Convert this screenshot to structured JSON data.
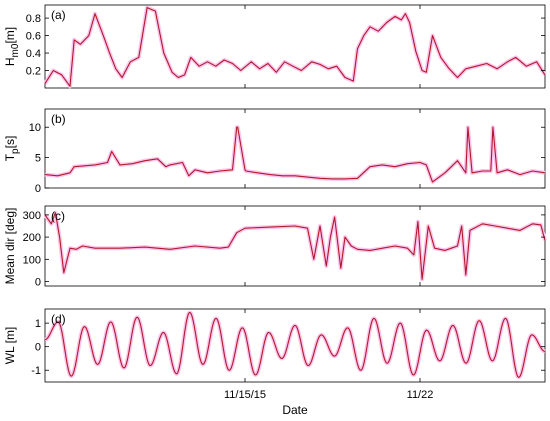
{
  "chart_data": {
    "type": "line",
    "shared_x": {
      "label": "Date",
      "start": "2015-11-07 00:00",
      "end": "2015-11-27 00:00",
      "ticks": [
        "2015-11-15",
        "2015-11-22"
      ],
      "tick_labels": [
        "11/15/15",
        "11/22"
      ]
    },
    "colors": {
      "line": "#b2182b",
      "envelope": "#fbc4ec"
    },
    "panels": [
      {
        "letter": "(a)",
        "ylabel": "H",
        "ylabel_sub": "m0",
        "ylabel_unit": "[m]",
        "ylim": [
          0,
          0.95
        ],
        "yticks": [
          0.2,
          0.4,
          0.6,
          0.8
        ],
        "ytick_labels": [
          "0.2",
          "0.4",
          "0.6",
          "0.8"
        ],
        "series": [
          {
            "x": [
              "2015-11-07 00:00",
              "2015-11-07 08:00",
              "2015-11-07 16:00",
              "2015-11-08 00:00",
              "2015-11-08 04:00",
              "2015-11-08 10:00",
              "2015-11-08 18:00",
              "2015-11-09 00:00",
              "2015-11-09 08:00",
              "2015-11-09 14:00",
              "2015-11-09 20:00",
              "2015-11-10 02:00",
              "2015-11-10 10:00",
              "2015-11-10 18:00",
              "2015-11-11 02:00",
              "2015-11-11 10:00",
              "2015-11-11 18:00",
              "2015-11-12 02:00",
              "2015-11-12 08:00",
              "2015-11-12 14:00",
              "2015-11-12 20:00",
              "2015-11-13 04:00",
              "2015-11-13 12:00",
              "2015-11-13 20:00",
              "2015-11-14 04:00",
              "2015-11-14 12:00",
              "2015-11-14 20:00",
              "2015-11-15 06:00",
              "2015-11-15 14:00",
              "2015-11-15 22:00",
              "2015-11-16 06:00",
              "2015-11-16 14:00",
              "2015-11-16 22:00",
              "2015-11-17 06:00",
              "2015-11-17 16:00",
              "2015-11-18 00:00",
              "2015-11-18 08:00",
              "2015-11-18 16:00",
              "2015-11-19 00:00",
              "2015-11-19 08:00",
              "2015-11-19 12:00",
              "2015-11-19 18:00",
              "2015-11-20 00:00",
              "2015-11-20 08:00",
              "2015-11-20 16:00",
              "2015-11-21 00:00",
              "2015-11-21 06:00",
              "2015-11-21 10:00",
              "2015-11-21 14:00",
              "2015-11-21 20:00",
              "2015-11-22 02:00",
              "2015-11-22 06:00",
              "2015-11-22 12:00",
              "2015-11-22 20:00",
              "2015-11-23 04:00",
              "2015-11-23 12:00",
              "2015-11-23 20:00",
              "2015-11-24 06:00",
              "2015-11-24 16:00",
              "2015-11-25 02:00",
              "2015-11-25 12:00",
              "2015-11-25 20:00",
              "2015-11-26 06:00",
              "2015-11-26 16:00",
              "2015-11-27 00:00"
            ],
            "y": [
              0.05,
              0.2,
              0.15,
              0.02,
              0.55,
              0.5,
              0.6,
              0.85,
              0.6,
              0.4,
              0.22,
              0.12,
              0.3,
              0.35,
              0.92,
              0.88,
              0.4,
              0.18,
              0.12,
              0.15,
              0.35,
              0.25,
              0.3,
              0.25,
              0.32,
              0.28,
              0.2,
              0.3,
              0.22,
              0.28,
              0.18,
              0.3,
              0.25,
              0.2,
              0.3,
              0.27,
              0.22,
              0.25,
              0.12,
              0.08,
              0.45,
              0.6,
              0.7,
              0.65,
              0.75,
              0.82,
              0.78,
              0.85,
              0.75,
              0.42,
              0.2,
              0.18,
              0.6,
              0.35,
              0.22,
              0.12,
              0.22,
              0.25,
              0.28,
              0.22,
              0.3,
              0.35,
              0.25,
              0.3,
              0.15
            ]
          }
        ]
      },
      {
        "letter": "(b)",
        "ylabel": "T",
        "ylabel_sub": "p",
        "ylabel_unit": "[s]",
        "ylim": [
          0,
          13
        ],
        "yticks": [
          0,
          5,
          10
        ],
        "ytick_labels": [
          "0",
          "5",
          "10"
        ],
        "series": [
          {
            "x": [
              "2015-11-07 00:00",
              "2015-11-07 12:00",
              "2015-11-08 00:00",
              "2015-11-08 04:00",
              "2015-11-09 00:00",
              "2015-11-09 12:00",
              "2015-11-09 16:00",
              "2015-11-10 00:00",
              "2015-11-10 12:00",
              "2015-11-11 00:00",
              "2015-11-11 12:00",
              "2015-11-11 20:00",
              "2015-11-12 00:00",
              "2015-11-12 12:00",
              "2015-11-12 18:00",
              "2015-11-13 00:00",
              "2015-11-13 12:00",
              "2015-11-14 00:00",
              "2015-11-14 12:00",
              "2015-11-14 16:00",
              "2015-11-14 17:00",
              "2015-11-15 00:00",
              "2015-11-15 01:00",
              "2015-11-15 12:00",
              "2015-11-16 00:00",
              "2015-11-16 12:00",
              "2015-11-17 00:00",
              "2015-11-17 12:00",
              "2015-11-18 00:00",
              "2015-11-18 12:00",
              "2015-11-19 00:00",
              "2015-11-19 12:00",
              "2015-11-20 00:00",
              "2015-11-20 12:00",
              "2015-11-21 00:00",
              "2015-11-21 12:00",
              "2015-11-22 00:00",
              "2015-11-22 06:00",
              "2015-11-22 12:00",
              "2015-11-23 00:00",
              "2015-11-23 12:00",
              "2015-11-23 20:00",
              "2015-11-23 22:00",
              "2015-11-24 02:00",
              "2015-11-24 12:00",
              "2015-11-24 20:00",
              "2015-11-24 22:00",
              "2015-11-25 02:00",
              "2015-11-25 12:00",
              "2015-11-26 00:00",
              "2015-11-26 12:00",
              "2015-11-27 00:00"
            ],
            "y": [
              2.2,
              2.0,
              2.5,
              3.5,
              3.8,
              4.2,
              6.0,
              3.8,
              4.0,
              4.5,
              4.8,
              3.5,
              3.8,
              4.2,
              2.0,
              3.0,
              2.5,
              2.8,
              3.0,
              10.0,
              10.0,
              3.0,
              2.8,
              2.5,
              2.2,
              2.0,
              2.0,
              1.8,
              1.6,
              1.5,
              1.5,
              1.6,
              3.5,
              3.8,
              3.5,
              4.0,
              4.2,
              3.8,
              1.0,
              2.5,
              4.5,
              2.5,
              10.0,
              2.5,
              2.8,
              2.8,
              10.0,
              2.5,
              3.0,
              2.2,
              2.8,
              2.5
            ]
          }
        ]
      },
      {
        "letter": "(c)",
        "ylabel": "Mean dir [deg]",
        "ylabel_sub": "",
        "ylabel_unit": "",
        "ylim": [
          -20,
          340
        ],
        "yticks": [
          0,
          100,
          200,
          300
        ],
        "ytick_labels": [
          "0",
          "100",
          "200",
          "300"
        ],
        "series": [
          {
            "x": [
              "2015-11-07 00:00",
              "2015-11-07 06:00",
              "2015-11-07 10:00",
              "2015-11-07 14:00",
              "2015-11-07 18:00",
              "2015-11-08 00:00",
              "2015-11-08 06:00",
              "2015-11-08 12:00",
              "2015-11-09 00:00",
              "2015-11-10 00:00",
              "2015-11-11 00:00",
              "2015-11-12 00:00",
              "2015-11-13 00:00",
              "2015-11-14 00:00",
              "2015-11-14 08:00",
              "2015-11-14 16:00",
              "2015-11-15 00:00",
              "2015-11-16 00:00",
              "2015-11-17 00:00",
              "2015-11-17 12:00",
              "2015-11-17 18:00",
              "2015-11-18 00:00",
              "2015-11-18 06:00",
              "2015-11-18 10:00",
              "2015-11-18 14:00",
              "2015-11-18 20:00",
              "2015-11-19 00:00",
              "2015-11-19 06:00",
              "2015-11-19 12:00",
              "2015-11-20 00:00",
              "2015-11-20 12:00",
              "2015-11-21 00:00",
              "2015-11-21 12:00",
              "2015-11-21 18:00",
              "2015-11-21 22:00",
              "2015-11-22 02:00",
              "2015-11-22 08:00",
              "2015-11-22 14:00",
              "2015-11-23 00:00",
              "2015-11-23 06:00",
              "2015-11-23 12:00",
              "2015-11-23 16:00",
              "2015-11-23 20:00",
              "2015-11-24 00:00",
              "2015-11-24 12:00",
              "2015-11-25 00:00",
              "2015-11-25 12:00",
              "2015-11-26 00:00",
              "2015-11-26 12:00",
              "2015-11-26 20:00",
              "2015-11-27 00:00"
            ],
            "y": [
              300,
              260,
              310,
              200,
              40,
              150,
              145,
              160,
              150,
              150,
              155,
              145,
              160,
              150,
              155,
              220,
              240,
              245,
              250,
              240,
              100,
              250,
              70,
              200,
              290,
              60,
              200,
              160,
              145,
              140,
              150,
              160,
              150,
              120,
              270,
              10,
              250,
              150,
              140,
              150,
              160,
              250,
              30,
              230,
              260,
              250,
              240,
              230,
              260,
              255,
              185
            ]
          }
        ]
      },
      {
        "letter": "(d)",
        "ylabel": "WL [m]",
        "ylabel_sub": "",
        "ylabel_unit": "",
        "ylim": [
          -1.5,
          1.6
        ],
        "yticks": [
          -1,
          0,
          1
        ],
        "ytick_labels": [
          "-1",
          "0",
          "1"
        ],
        "series": [
          {
            "x_start": "2015-11-07 00:00",
            "x_end": "2015-11-27 00:00",
            "oscillation_count": 38,
            "y": [
              0.3,
              1.05,
              -1.25,
              0.85,
              -0.75,
              1.05,
              -0.9,
              1.25,
              -0.8,
              0.6,
              -1.15,
              1.45,
              -0.75,
              1.2,
              -1.0,
              0.8,
              -1.2,
              0.6,
              -0.5,
              0.9,
              -0.8,
              0.5,
              -0.4,
              0.8,
              -1.0,
              1.2,
              -0.7,
              1.0,
              -1.2,
              0.7,
              -0.6,
              0.9,
              -0.7,
              1.1,
              -0.6,
              1.2,
              -1.3,
              0.5,
              -0.2
            ]
          }
        ]
      }
    ],
    "xlabel": "Date"
  }
}
